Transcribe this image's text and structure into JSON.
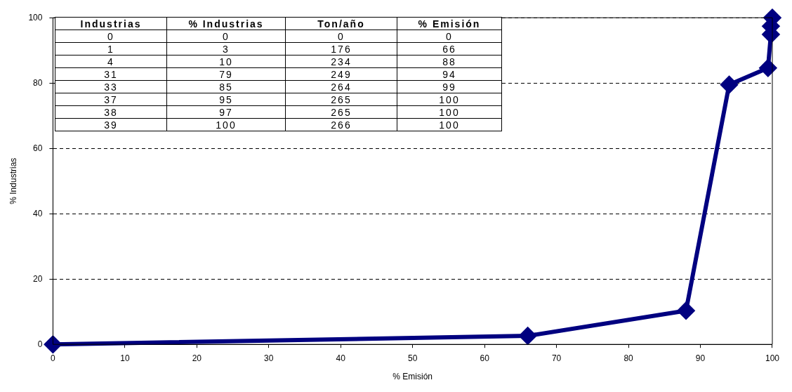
{
  "chart_data": {
    "type": "line",
    "xlabel": "% Emisión",
    "ylabel": "% Industrias",
    "x": [
      0,
      66,
      88,
      94,
      99.4,
      99.8,
      99.8,
      100
    ],
    "series": [
      {
        "color": "#000080",
        "values": [
          0,
          2.6,
          10.3,
          79.5,
          84.6,
          94.9,
          97.4,
          100
        ]
      }
    ],
    "xlim": [
      0,
      100
    ],
    "xticks": [
      0,
      10,
      20,
      30,
      40,
      50,
      60,
      70,
      80,
      90,
      100
    ],
    "ylim": [
      0,
      100
    ],
    "yticks": [
      0,
      20,
      40,
      60,
      80,
      100
    ],
    "grid": "y",
    "legend": false,
    "marker": "diamond",
    "line_style": "solid",
    "annotations": [
      "Industrias",
      "% Industrias",
      "Ton/año",
      "% Emisión",
      "0",
      "0",
      "0",
      "0",
      "1",
      "3",
      "176",
      "66",
      "4",
      "10",
      "234",
      "88",
      "31",
      "79",
      "249",
      "94",
      "33",
      "85",
      "264",
      "99",
      "37",
      "95",
      "265",
      "100",
      "38",
      "97",
      "265",
      "100",
      "39",
      "100",
      "266",
      "100"
    ]
  }
}
